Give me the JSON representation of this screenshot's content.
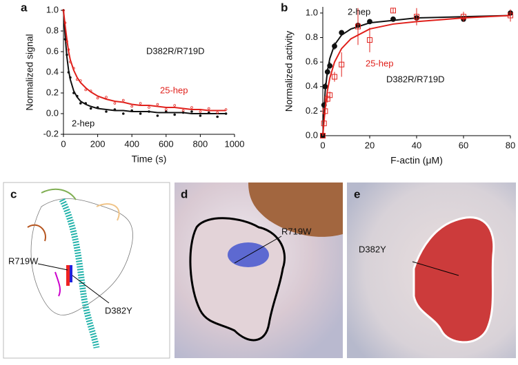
{
  "chart_data": [
    {
      "type": "scatter",
      "panel_label": "a",
      "xlabel": "Time (s)",
      "ylabel": "Normalized signal",
      "annotation": "D382R/R719D",
      "xlim": [
        0,
        1000
      ],
      "ylim": [
        -0.2,
        1.0
      ],
      "xticks": [
        0,
        200,
        400,
        600,
        800,
        1000
      ],
      "yticks": [
        -0.2,
        {
          "value": 0,
          "label": "0.0"
        },
        0.2,
        0.4,
        0.6,
        0.8,
        {
          "value": 1,
          "label": "1.0"
        }
      ],
      "x": [
        0,
        10,
        20,
        30,
        40,
        60,
        80,
        100,
        130,
        160,
        200,
        250,
        300,
        350,
        400,
        450,
        500,
        550,
        600,
        650,
        700,
        750,
        800,
        850,
        900,
        950
      ],
      "series": [
        {
          "name": "2-hep",
          "color": "#111111",
          "values": [
            1.0,
            0.72,
            0.57,
            0.4,
            0.35,
            0.2,
            0.17,
            0.1,
            0.1,
            0.05,
            0.06,
            0.02,
            0.04,
            0.0,
            0.03,
            0.0,
            0.02,
            -0.02,
            0.02,
            -0.01,
            0.01,
            0.02,
            -0.02,
            0.01,
            -0.03,
            0.0
          ],
          "fit": [
            1.0,
            0.75,
            0.55,
            0.42,
            0.33,
            0.22,
            0.16,
            0.12,
            0.09,
            0.07,
            0.05,
            0.04,
            0.03,
            0.03,
            0.02,
            0.02,
            0.02,
            0.01,
            0.01,
            0.01,
            0.01,
            0.0,
            0.0,
            0.0,
            0.0,
            0.0
          ]
        },
        {
          "name": "25-hep",
          "color": "#e0201b",
          "values": [
            1.0,
            0.88,
            0.7,
            0.62,
            0.5,
            0.44,
            0.33,
            0.32,
            0.23,
            0.22,
            0.15,
            0.16,
            0.1,
            0.13,
            0.07,
            0.1,
            0.06,
            0.09,
            0.04,
            0.08,
            0.03,
            0.06,
            0.02,
            0.05,
            0.01,
            0.04
          ],
          "fit": [
            1.0,
            0.85,
            0.72,
            0.6,
            0.52,
            0.42,
            0.35,
            0.3,
            0.25,
            0.21,
            0.17,
            0.14,
            0.12,
            0.11,
            0.09,
            0.08,
            0.08,
            0.07,
            0.06,
            0.06,
            0.05,
            0.04,
            0.04,
            0.03,
            0.03,
            0.03
          ]
        }
      ]
    },
    {
      "type": "scatter",
      "panel_label": "b",
      "xlabel": "F-actin (μM)",
      "ylabel": "Normalized activity",
      "annotation": "D382R/R719D",
      "xlim": [
        0,
        80
      ],
      "ylim": [
        0,
        1.05
      ],
      "xticks": [
        0,
        20,
        40,
        60,
        80
      ],
      "yticks": [
        {
          "value": 0,
          "label": "0.0"
        },
        0.2,
        0.4,
        0.6,
        0.8,
        {
          "value": 1,
          "label": "1.0"
        }
      ],
      "x": [
        0,
        0.5,
        1,
        2,
        3,
        5,
        8,
        15,
        20,
        30,
        40,
        60,
        80
      ],
      "fit_x": [
        0,
        1,
        2,
        3,
        5,
        8,
        12,
        20,
        30,
        40,
        60,
        80
      ],
      "series": [
        {
          "name": "2-hep",
          "color": "#111111",
          "values": [
            0,
            0.25,
            0.4,
            0.52,
            0.57,
            0.73,
            0.84,
            0.9,
            0.93,
            0.95,
            0.96,
            0.95,
            1.0
          ],
          "errors": [
            0,
            0.02,
            0.03,
            0.03,
            0.03,
            0.03,
            0.02,
            0.03,
            0.02,
            0.02,
            0.02,
            0.02,
            0.02
          ],
          "fit": [
            0,
            0.36,
            0.53,
            0.63,
            0.74,
            0.82,
            0.87,
            0.92,
            0.94,
            0.96,
            0.97,
            0.98
          ]
        },
        {
          "name": "25-hep",
          "color": "#e0201b",
          "values": [
            0,
            0.1,
            0.2,
            0.3,
            0.33,
            0.48,
            0.58,
            0.89,
            0.78,
            1.02,
            0.97,
            0.97,
            0.98
          ],
          "errors": [
            0,
            0.02,
            0.03,
            0.03,
            0.03,
            0.04,
            0.1,
            0.15,
            0.1,
            0.02,
            0.07,
            0.04,
            0.05
          ],
          "fit": [
            0,
            0.22,
            0.37,
            0.47,
            0.6,
            0.71,
            0.79,
            0.87,
            0.91,
            0.93,
            0.96,
            0.98
          ]
        }
      ]
    }
  ],
  "panels": [
    {
      "label": "c",
      "annotations": [
        "R719W",
        "D382Y"
      ]
    },
    {
      "label": "d",
      "annotations": [
        "R719W"
      ]
    },
    {
      "label": "e",
      "annotations": [
        "D382Y"
      ]
    }
  ]
}
